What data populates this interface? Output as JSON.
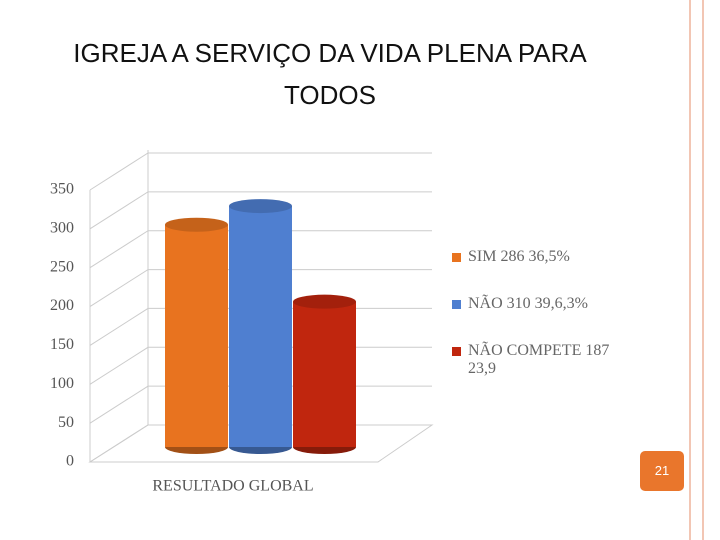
{
  "title": "IGREJA A SERVIÇO DA VIDA PLENA PARA TODOS",
  "page_number": "21",
  "chart_data": {
    "type": "bar3d",
    "categories": [
      "RESULTADO GLOBAL"
    ],
    "series": [
      {
        "name": "SIM 286 36,5%",
        "color": "#e8731f",
        "values": [
          286
        ]
      },
      {
        "name": "NÃO 310 39,6,3%",
        "color": "#4f7fd0",
        "values": [
          310
        ]
      },
      {
        "name": "NÃO COMPETE 187 23,9",
        "color": "#c0260e",
        "values": [
          187
        ]
      }
    ],
    "ylim": [
      0,
      350
    ],
    "yticks": [
      0,
      50,
      100,
      150,
      200,
      250,
      300,
      350
    ],
    "grid": true,
    "legend": "right"
  }
}
